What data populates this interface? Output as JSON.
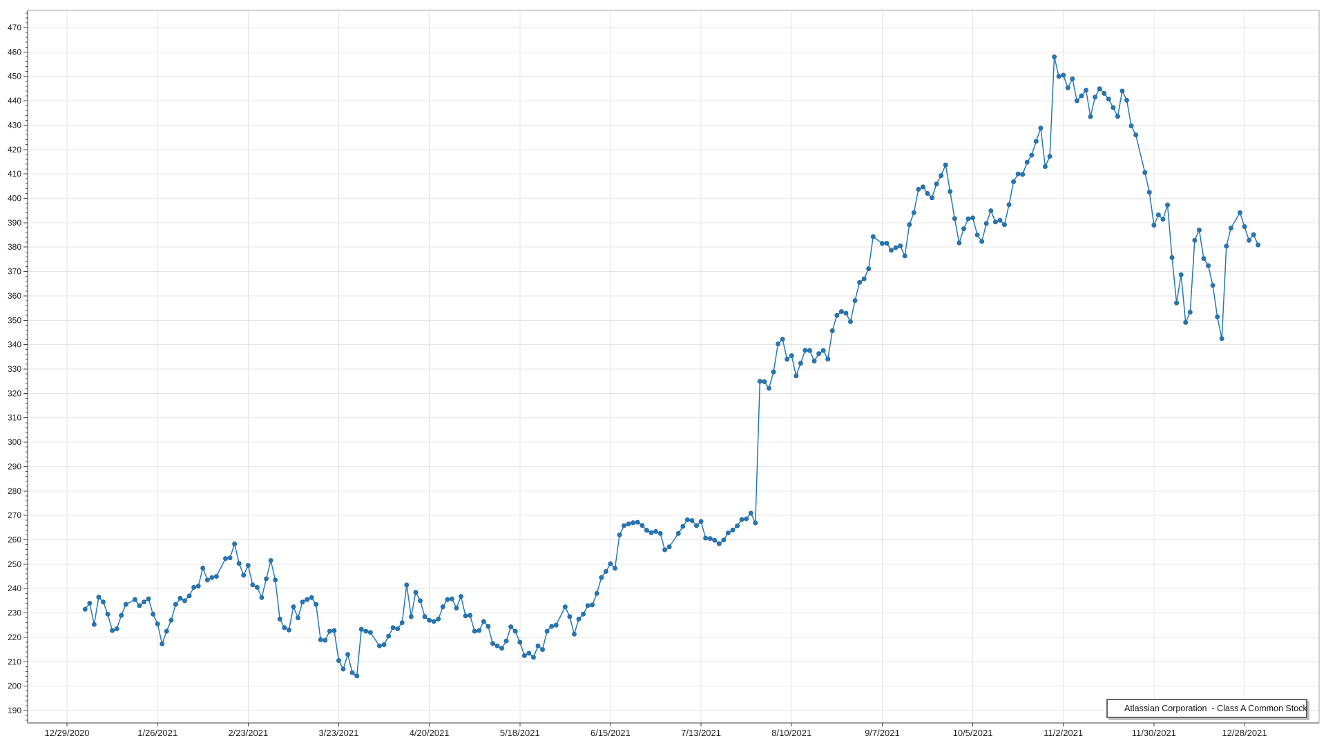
{
  "chart_data": {
    "type": "line",
    "legend": {
      "position": "bottom-right",
      "label": "Atlassian Corporation  - Class A Common Stock"
    },
    "grid": true,
    "x_axis": {
      "kind": "date-weekday",
      "start_date": "2020-12-29",
      "tick_every_weekdays": 20,
      "tick_labels": [
        "12/29/2020",
        "1/26/2021",
        "2/23/2021",
        "3/23/2021",
        "4/20/2021",
        "5/18/2021",
        "6/15/2021",
        "7/13/2021",
        "8/10/2021",
        "9/7/2021",
        "10/5/2021",
        "11/2/2021",
        "11/30/2021",
        "12/28/2021"
      ]
    },
    "y_axis": {
      "label_min": 190,
      "label_max": 470,
      "label_step": 10,
      "minor_step": 2,
      "axis_min": 185,
      "axis_max": 477
    },
    "series": [
      {
        "name": "Atlassian Corporation  - Class A Common Stock",
        "points": [
          [
            "2021-01-04",
            231.5
          ],
          [
            "2021-01-05",
            234.0
          ],
          [
            "2021-01-06",
            225.3
          ],
          [
            "2021-01-07",
            236.5
          ],
          [
            "2021-01-08",
            234.5
          ],
          [
            "2021-01-11",
            229.5
          ],
          [
            "2021-01-12",
            222.8
          ],
          [
            "2021-01-13",
            223.5
          ],
          [
            "2021-01-14",
            229.0
          ],
          [
            "2021-01-15",
            233.5
          ],
          [
            "2021-01-19",
            235.5
          ],
          [
            "2021-01-20",
            233.0
          ],
          [
            "2021-01-21",
            234.5
          ],
          [
            "2021-01-22",
            235.8
          ],
          [
            "2021-01-25",
            229.5
          ],
          [
            "2021-01-26",
            225.5
          ],
          [
            "2021-01-27",
            217.3
          ],
          [
            "2021-01-28",
            222.5
          ],
          [
            "2021-01-29",
            227.0
          ],
          [
            "2021-02-01",
            233.5
          ],
          [
            "2021-02-02",
            236.0
          ],
          [
            "2021-02-03",
            235.0
          ],
          [
            "2021-02-04",
            237.0
          ],
          [
            "2021-02-05",
            240.5
          ],
          [
            "2021-02-08",
            241.0
          ],
          [
            "2021-02-09",
            248.4
          ],
          [
            "2021-02-10",
            243.5
          ],
          [
            "2021-02-11",
            244.5
          ],
          [
            "2021-02-12",
            245.0
          ],
          [
            "2021-02-16",
            252.3
          ],
          [
            "2021-02-17",
            252.6
          ],
          [
            "2021-02-18",
            258.3
          ],
          [
            "2021-02-19",
            250.3
          ],
          [
            "2021-02-22",
            245.5
          ],
          [
            "2021-02-23",
            249.5
          ],
          [
            "2021-02-24",
            241.5
          ],
          [
            "2021-02-25",
            240.5
          ],
          [
            "2021-02-26",
            236.3
          ],
          [
            "2021-03-01",
            244.0
          ],
          [
            "2021-03-02",
            251.5
          ],
          [
            "2021-03-03",
            243.5
          ],
          [
            "2021-03-04",
            227.5
          ],
          [
            "2021-03-05",
            224.0
          ],
          [
            "2021-03-08",
            223.0
          ],
          [
            "2021-03-09",
            232.5
          ],
          [
            "2021-03-10",
            228.0
          ],
          [
            "2021-03-11",
            234.5
          ],
          [
            "2021-03-12",
            235.5
          ],
          [
            "2021-03-15",
            236.3
          ],
          [
            "2021-03-16",
            233.5
          ],
          [
            "2021-03-17",
            219.0
          ],
          [
            "2021-03-18",
            218.8
          ],
          [
            "2021-03-19",
            222.5
          ],
          [
            "2021-03-22",
            222.8
          ],
          [
            "2021-03-23",
            210.5
          ],
          [
            "2021-03-24",
            207.0
          ],
          [
            "2021-03-25",
            213.0
          ],
          [
            "2021-03-26",
            205.5
          ],
          [
            "2021-03-29",
            204.2
          ],
          [
            "2021-03-30",
            223.3
          ],
          [
            "2021-03-31",
            222.5
          ],
          [
            "2021-04-01",
            222.0
          ],
          [
            "2021-04-05",
            216.5
          ],
          [
            "2021-04-06",
            217.0
          ],
          [
            "2021-04-07",
            220.5
          ],
          [
            "2021-04-08",
            224.0
          ],
          [
            "2021-04-09",
            223.5
          ],
          [
            "2021-04-12",
            226.0
          ],
          [
            "2021-04-13",
            241.5
          ],
          [
            "2021-04-14",
            228.5
          ],
          [
            "2021-04-15",
            238.5
          ],
          [
            "2021-04-16",
            235.0
          ],
          [
            "2021-04-19",
            228.5
          ],
          [
            "2021-04-20",
            227.0
          ],
          [
            "2021-04-21",
            226.5
          ],
          [
            "2021-04-22",
            227.5
          ],
          [
            "2021-04-23",
            232.5
          ],
          [
            "2021-04-26",
            235.5
          ],
          [
            "2021-04-27",
            235.8
          ],
          [
            "2021-04-28",
            232.0
          ],
          [
            "2021-04-29",
            236.8
          ],
          [
            "2021-04-30",
            228.8
          ],
          [
            "2021-05-03",
            229.0
          ],
          [
            "2021-05-04",
            222.5
          ],
          [
            "2021-05-05",
            222.8
          ],
          [
            "2021-05-06",
            226.5
          ],
          [
            "2021-05-07",
            224.5
          ],
          [
            "2021-05-10",
            217.5
          ],
          [
            "2021-05-11",
            216.5
          ],
          [
            "2021-05-12",
            215.5
          ],
          [
            "2021-05-13",
            218.5
          ],
          [
            "2021-05-14",
            224.3
          ],
          [
            "2021-05-17",
            222.5
          ],
          [
            "2021-05-18",
            218.0
          ],
          [
            "2021-05-19",
            212.5
          ],
          [
            "2021-05-20",
            213.5
          ],
          [
            "2021-05-21",
            211.8
          ],
          [
            "2021-05-24",
            216.5
          ],
          [
            "2021-05-25",
            215.0
          ],
          [
            "2021-05-26",
            222.5
          ],
          [
            "2021-05-27",
            224.5
          ],
          [
            "2021-05-28",
            225.0
          ],
          [
            "2021-06-01",
            232.5
          ],
          [
            "2021-06-02",
            228.5
          ],
          [
            "2021-06-03",
            221.3
          ],
          [
            "2021-06-04",
            227.5
          ],
          [
            "2021-06-07",
            229.5
          ],
          [
            "2021-06-08",
            233.0
          ],
          [
            "2021-06-09",
            233.3
          ],
          [
            "2021-06-10",
            238.0
          ],
          [
            "2021-06-11",
            244.5
          ],
          [
            "2021-06-14",
            247.0
          ],
          [
            "2021-06-15",
            250.2
          ],
          [
            "2021-06-16",
            248.3
          ],
          [
            "2021-06-17",
            262.0
          ],
          [
            "2021-06-18",
            265.8
          ],
          [
            "2021-06-21",
            266.5
          ],
          [
            "2021-06-22",
            267.0
          ],
          [
            "2021-06-23",
            267.2
          ],
          [
            "2021-06-24",
            265.9
          ],
          [
            "2021-06-25",
            263.9
          ],
          [
            "2021-06-28",
            262.9
          ],
          [
            "2021-06-29",
            263.4
          ],
          [
            "2021-06-30",
            262.6
          ],
          [
            "2021-07-01",
            255.9
          ],
          [
            "2021-07-02",
            257.1
          ],
          [
            "2021-07-06",
            262.6
          ],
          [
            "2021-07-07",
            265.5
          ],
          [
            "2021-07-08",
            268.2
          ],
          [
            "2021-07-09",
            267.9
          ],
          [
            "2021-07-12",
            265.8
          ],
          [
            "2021-07-13",
            267.5
          ],
          [
            "2021-07-14",
            260.7
          ],
          [
            "2021-07-15",
            260.5
          ],
          [
            "2021-07-16",
            259.8
          ],
          [
            "2021-07-19",
            258.4
          ],
          [
            "2021-07-20",
            259.9
          ],
          [
            "2021-07-21",
            262.8
          ],
          [
            "2021-07-22",
            264.0
          ],
          [
            "2021-07-23",
            265.7
          ],
          [
            "2021-07-26",
            268.3
          ],
          [
            "2021-07-27",
            268.6
          ],
          [
            "2021-07-28",
            270.9
          ],
          [
            "2021-07-29",
            266.9
          ],
          [
            "2021-07-30",
            325.0
          ],
          [
            "2021-08-02",
            324.8
          ],
          [
            "2021-08-03",
            322.1
          ],
          [
            "2021-08-04",
            328.8
          ],
          [
            "2021-08-05",
            340.3
          ],
          [
            "2021-08-06",
            342.2
          ],
          [
            "2021-08-09",
            334.0
          ],
          [
            "2021-08-10",
            335.5
          ],
          [
            "2021-08-11",
            327.2
          ],
          [
            "2021-08-12",
            332.4
          ],
          [
            "2021-08-13",
            337.7
          ],
          [
            "2021-08-16",
            337.6
          ],
          [
            "2021-08-17",
            333.3
          ],
          [
            "2021-08-18",
            336.3
          ],
          [
            "2021-08-19",
            337.6
          ],
          [
            "2021-08-20",
            334.1
          ],
          [
            "2021-08-23",
            345.7
          ],
          [
            "2021-08-24",
            352.0
          ],
          [
            "2021-08-25",
            353.6
          ],
          [
            "2021-08-26",
            352.9
          ],
          [
            "2021-08-27",
            349.4
          ],
          [
            "2021-08-30",
            358.1
          ],
          [
            "2021-08-31",
            365.5
          ],
          [
            "2021-09-01",
            367.0
          ],
          [
            "2021-09-02",
            371.1
          ],
          [
            "2021-09-03",
            384.3
          ],
          [
            "2021-09-07",
            381.5
          ],
          [
            "2021-09-08",
            381.6
          ],
          [
            "2021-09-09",
            378.7
          ],
          [
            "2021-09-10",
            379.8
          ],
          [
            "2021-09-13",
            380.5
          ],
          [
            "2021-09-14",
            376.4
          ],
          [
            "2021-09-15",
            389.2
          ],
          [
            "2021-09-16",
            394.1
          ],
          [
            "2021-09-17",
            403.7
          ],
          [
            "2021-09-20",
            404.7
          ],
          [
            "2021-09-21",
            402.0
          ],
          [
            "2021-09-22",
            400.2
          ],
          [
            "2021-09-23",
            405.9
          ],
          [
            "2021-09-24",
            409.3
          ],
          [
            "2021-09-27",
            413.7
          ],
          [
            "2021-09-28",
            402.8
          ],
          [
            "2021-09-29",
            391.7
          ],
          [
            "2021-09-30",
            381.7
          ],
          [
            "2021-10-01",
            387.5
          ],
          [
            "2021-10-04",
            391.6
          ],
          [
            "2021-10-05",
            392.0
          ],
          [
            "2021-10-06",
            385.0
          ],
          [
            "2021-10-07",
            382.3
          ],
          [
            "2021-10-08",
            389.7
          ],
          [
            "2021-10-11",
            394.9
          ],
          [
            "2021-10-12",
            390.3
          ],
          [
            "2021-10-13",
            391.0
          ],
          [
            "2021-10-14",
            389.2
          ],
          [
            "2021-10-15",
            397.4
          ],
          [
            "2021-10-18",
            406.8
          ],
          [
            "2021-10-19",
            410.0
          ],
          [
            "2021-10-20",
            409.8
          ],
          [
            "2021-10-21",
            414.8
          ],
          [
            "2021-10-22",
            417.7
          ],
          [
            "2021-10-25",
            423.4
          ],
          [
            "2021-10-26",
            428.8
          ],
          [
            "2021-10-27",
            413.0
          ],
          [
            "2021-10-28",
            417.2
          ],
          [
            "2021-10-29",
            458.0
          ],
          [
            "2021-11-01",
            450.0
          ],
          [
            "2021-11-02",
            450.5
          ],
          [
            "2021-11-03",
            445.3
          ],
          [
            "2021-11-04",
            449.0
          ],
          [
            "2021-11-05",
            440.0
          ],
          [
            "2021-11-08",
            442.0
          ],
          [
            "2021-11-09",
            444.3
          ],
          [
            "2021-11-10",
            433.5
          ],
          [
            "2021-11-11",
            441.5
          ],
          [
            "2021-11-12",
            444.9
          ],
          [
            "2021-11-15",
            443.0
          ],
          [
            "2021-11-16",
            440.7
          ],
          [
            "2021-11-17",
            437.2
          ],
          [
            "2021-11-18",
            433.6
          ],
          [
            "2021-11-19",
            444.0
          ],
          [
            "2021-11-22",
            440.2
          ],
          [
            "2021-11-23",
            429.7
          ],
          [
            "2021-11-24",
            426.0
          ],
          [
            "2021-11-26",
            410.6
          ],
          [
            "2021-11-29",
            402.5
          ],
          [
            "2021-11-30",
            389.0
          ],
          [
            "2021-12-01",
            393.2
          ],
          [
            "2021-12-02",
            391.4
          ],
          [
            "2021-12-03",
            397.3
          ],
          [
            "2021-12-06",
            375.7
          ],
          [
            "2021-12-07",
            357.1
          ],
          [
            "2021-12-08",
            368.7
          ],
          [
            "2021-12-09",
            349.1
          ],
          [
            "2021-12-10",
            353.3
          ],
          [
            "2021-12-13",
            382.8
          ],
          [
            "2021-12-14",
            387.0
          ],
          [
            "2021-12-15",
            375.3
          ],
          [
            "2021-12-16",
            372.4
          ],
          [
            "2021-12-17",
            364.3
          ],
          [
            "2021-12-20",
            351.4
          ],
          [
            "2021-12-21",
            342.5
          ],
          [
            "2021-12-22",
            380.4
          ],
          [
            "2021-12-23",
            387.8
          ],
          [
            "2021-12-27",
            394.1
          ],
          [
            "2021-12-28",
            388.4
          ],
          [
            "2021-12-29",
            382.8
          ],
          [
            "2021-12-30",
            385.1
          ],
          [
            "2021-12-31",
            380.9
          ]
        ]
      }
    ]
  },
  "colors": {
    "line": "#2577B6",
    "marker": "#2577B6",
    "marker_edge": "#1A5E93",
    "grid": "#E4E4E4",
    "frame": "#A6A6A6",
    "axis": "#3C3C3C",
    "text": "#1F1F1F",
    "legend_border": "#666666",
    "legend_shadow": "#BFBFBF",
    "background": "#FFFFFF"
  }
}
